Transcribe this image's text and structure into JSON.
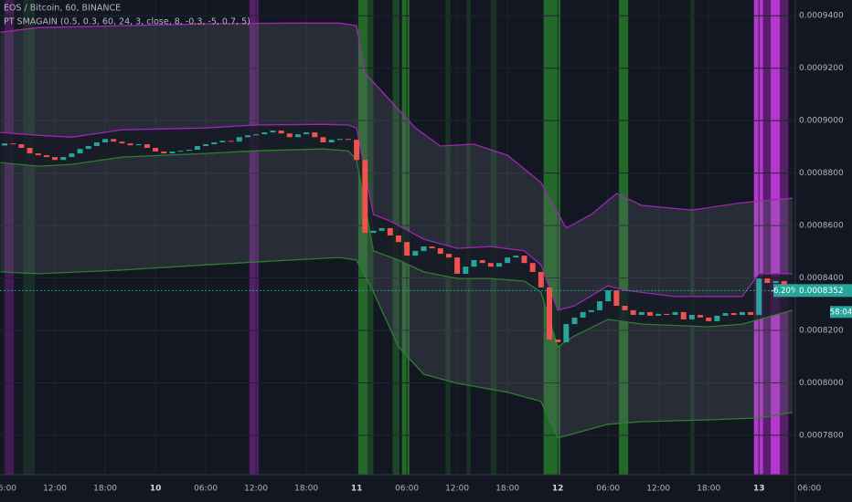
{
  "chart_data": {
    "type": "candlestick",
    "title": "EOS / Bitcoin, 60, BINANCE",
    "subtitle": "PT SMAGAIN (0.5, 0.3, 60, 24, 3, close, 8, -0.3, -5, 0.7, 5)",
    "x": [
      6,
      7,
      8,
      9,
      10,
      11,
      12,
      13,
      14,
      15,
      16,
      17,
      18,
      19,
      20,
      21,
      22,
      23,
      24,
      25,
      26,
      27,
      28,
      29,
      30,
      31,
      32,
      33,
      34,
      35,
      36,
      37,
      38,
      39,
      40,
      41,
      42,
      43,
      44,
      45,
      46,
      47,
      48,
      49,
      50,
      51,
      52,
      53,
      54,
      55,
      56,
      57,
      58,
      59,
      60,
      61,
      62,
      63,
      64,
      65,
      66,
      67,
      68,
      69,
      70,
      71,
      72,
      73,
      74,
      75,
      76,
      77,
      78,
      79,
      80,
      81,
      82,
      83,
      84,
      85,
      86,
      87,
      88,
      89,
      90,
      91,
      92,
      93,
      94,
      95,
      96,
      97,
      98,
      99,
      100
    ],
    "open": [
      0.0008905,
      0.0008913,
      0.000891,
      0.0008896,
      0.0008875,
      0.0008868,
      0.0008861,
      0.000885,
      0.0008861,
      0.0008875,
      0.0008892,
      0.0008903,
      0.0008917,
      0.000893,
      0.000892,
      0.0008913,
      0.0008906,
      0.000891,
      0.0008896,
      0.0008882,
      0.0008875,
      0.0008882,
      0.0008885,
      0.0008889,
      0.0008903,
      0.000891,
      0.0008917,
      0.0008923,
      0.000892,
      0.0008937,
      0.0008944,
      0.0008948,
      0.0008955,
      0.0008962,
      0.0008951,
      0.0008937,
      0.0008948,
      0.0008955,
      0.0008937,
      0.0008917,
      0.0008927,
      0.000893,
      0.0008927,
      0.000885,
      0.0008572,
      0.000858,
      0.000859,
      0.0008562,
      0.0008537,
      0.0008485,
      0.0008503,
      0.000852,
      0.0008513,
      0.0008492,
      0.0008478,
      0.0008416,
      0.0008443,
      0.0008468,
      0.0008457,
      0.0008443,
      0.0008457,
      0.0008478,
      0.0008485,
      0.0008457,
      0.0008423,
      0.0008364,
      0.0008165,
      0.0008155,
      0.0008224,
      0.0008249,
      0.000827,
      0.0008277,
      0.0008311,
      0.0008353,
      0.0008294,
      0.0008277,
      0.0008259,
      0.000827,
      0.0008256,
      0.0008263,
      0.0008259,
      0.000827,
      0.0008242,
      0.0008259,
      0.0008249,
      0.0008235,
      0.0008256,
      0.0008266,
      0.0008259,
      0.000827,
      0.0008259,
      0.0008398,
      0.0008381,
      0.0008388,
      0.0008367
    ],
    "close": [
      0.0008913,
      0.000891,
      0.0008896,
      0.0008875,
      0.0008868,
      0.0008861,
      0.000885,
      0.0008861,
      0.0008875,
      0.0008892,
      0.0008903,
      0.0008917,
      0.000893,
      0.000892,
      0.0008913,
      0.0008906,
      0.000891,
      0.0008896,
      0.0008882,
      0.0008875,
      0.0008882,
      0.0008885,
      0.0008889,
      0.0008903,
      0.000891,
      0.0008917,
      0.0008923,
      0.000892,
      0.0008937,
      0.0008944,
      0.0008948,
      0.0008955,
      0.0008962,
      0.0008951,
      0.0008937,
      0.0008948,
      0.0008955,
      0.0008937,
      0.0008917,
      0.0008927,
      0.000893,
      0.0008927,
      0.000885,
      0.0008572,
      0.000858,
      0.000859,
      0.0008562,
      0.0008537,
      0.0008485,
      0.0008503,
      0.000852,
      0.0008513,
      0.0008492,
      0.0008478,
      0.0008416,
      0.0008443,
      0.0008468,
      0.0008457,
      0.0008443,
      0.0008457,
      0.0008478,
      0.0008485,
      0.0008457,
      0.0008423,
      0.0008364,
      0.0008165,
      0.0008155,
      0.0008224,
      0.0008249,
      0.000827,
      0.0008277,
      0.0008311,
      0.0008353,
      0.0008294,
      0.0008277,
      0.0008259,
      0.000827,
      0.0008256,
      0.0008263,
      0.0008259,
      0.000827,
      0.0008242,
      0.0008259,
      0.0008249,
      0.0008235,
      0.0008256,
      0.0008266,
      0.0008259,
      0.000827,
      0.0008259,
      0.0008398,
      0.0008381,
      0.0008388,
      0.0008367,
      0.0008352
    ],
    "up_color": "#26a69a",
    "down_color": "#ef5350",
    "bands": [
      {
        "color": "#9c27b0",
        "x": [
          5.5,
          10,
          20,
          30,
          40,
          46,
          48,
          49,
          52,
          55,
          58,
          62,
          66,
          70,
          73,
          76,
          79,
          82,
          88,
          94,
          100
        ],
        "values": [
          0.0009337,
          0.0009355,
          0.0009362,
          0.0009369,
          0.0009372,
          0.0009372,
          0.0009362,
          0.0009181,
          0.0009077,
          0.0008972,
          0.0008903,
          0.000891,
          0.0008868,
          0.0008764,
          0.000859,
          0.0008642,
          0.0008722,
          0.0008677,
          0.0008659,
          0.0008687,
          0.0008704
        ]
      },
      {
        "color": "#9c27b0",
        "x": [
          5.5,
          10,
          14,
          20,
          30,
          36,
          44,
          47,
          48,
          50,
          52,
          56,
          60,
          64,
          68,
          70,
          72,
          74,
          78,
          80,
          86,
          94,
          96,
          100
        ],
        "values": [
          0.0008955,
          0.0008944,
          0.0008937,
          0.0008965,
          0.0008972,
          0.0008983,
          0.0008986,
          0.0008983,
          0.0008972,
          0.0008642,
          0.0008617,
          0.0008548,
          0.0008513,
          0.000852,
          0.0008503,
          0.000845,
          0.0008277,
          0.0008294,
          0.000837,
          0.0008353,
          0.0008329,
          0.0008329,
          0.0008416,
          0.0008416
        ]
      },
      {
        "color": "#2e7d32",
        "x": [
          5.5,
          10,
          14,
          20,
          30,
          36,
          44,
          47,
          48,
          50,
          53,
          56,
          60,
          64,
          68,
          70,
          72,
          74,
          78,
          82,
          90,
          94,
          100
        ],
        "values": [
          0.000884,
          0.0008826,
          0.0008833,
          0.0008861,
          0.0008875,
          0.0008885,
          0.0008892,
          0.0008885,
          0.000885,
          0.0008503,
          0.0008468,
          0.0008423,
          0.0008398,
          0.0008398,
          0.0008388,
          0.0008346,
          0.0008137,
          0.0008179,
          0.0008242,
          0.0008224,
          0.0008214,
          0.0008224,
          0.0008277
        ]
      },
      {
        "color": "#2e7d32",
        "x": [
          5.5,
          10,
          20,
          30,
          40,
          46,
          48,
          50,
          53,
          56,
          60,
          66,
          70,
          72,
          74,
          78,
          82,
          90,
          96,
          100
        ],
        "values": [
          0.0008423,
          0.0008416,
          0.000843,
          0.000845,
          0.0008468,
          0.0008478,
          0.0008468,
          0.0008346,
          0.0008137,
          0.0008033,
          0.0007998,
          0.0007964,
          0.0007929,
          0.000779,
          0.0007807,
          0.0007842,
          0.0007852,
          0.0007859,
          0.0007866,
          0.0007887
        ]
      }
    ],
    "highlights": [
      {
        "start": 6.0,
        "end": 7.1,
        "color": "rgba(156,39,176,0.35)"
      },
      {
        "start": 8.2,
        "end": 9.6,
        "color": "rgba(76,175,80,0.15)"
      },
      {
        "start": 35.2,
        "end": 36.3,
        "color": "rgba(156,39,176,0.5)"
      },
      {
        "start": 48.2,
        "end": 49.3,
        "color": "rgba(46,160,46,0.6)"
      },
      {
        "start": 49.3,
        "end": 50.0,
        "color": "rgba(46,160,46,0.3)"
      },
      {
        "start": 52.3,
        "end": 53.1,
        "color": "rgba(46,160,46,0.35)"
      },
      {
        "start": 53.4,
        "end": 54.3,
        "color": "rgba(46,160,46,0.6)"
      },
      {
        "start": 58.6,
        "end": 59.2,
        "color": "rgba(46,160,46,0.2)"
      },
      {
        "start": 61.1,
        "end": 61.6,
        "color": "rgba(46,160,46,0.2)"
      },
      {
        "start": 64.0,
        "end": 64.7,
        "color": "rgba(46,160,46,0.2)"
      },
      {
        "start": 70.3,
        "end": 72.3,
        "color": "rgba(46,160,46,0.6)"
      },
      {
        "start": 79.3,
        "end": 80.4,
        "color": "rgba(46,160,46,0.6)"
      },
      {
        "start": 87.8,
        "end": 88.3,
        "color": "rgba(46,160,46,0.2)"
      },
      {
        "start": 95.4,
        "end": 96.5,
        "color": "rgba(224,64,251,0.8)"
      },
      {
        "start": 96.5,
        "end": 97.4,
        "color": "rgba(156,39,176,0.5)"
      },
      {
        "start": 97.4,
        "end": 98.5,
        "color": "rgba(224,64,251,0.8)"
      },
      {
        "start": 98.5,
        "end": 99.5,
        "color": "rgba(156,39,176,0.5)"
      }
    ],
    "last_price": 0.0008352,
    "change_label": "-6.20%",
    "countdown": "58:04",
    "xlim": [
      5.45,
      107.1
    ],
    "ylim": [
      0.000765,
      0.000946
    ],
    "xticks": [
      {
        "value": 6,
        "label": "06:00"
      },
      {
        "value": 12,
        "label": "12:00"
      },
      {
        "value": 18,
        "label": "18:00"
      },
      {
        "value": 24,
        "label": "10"
      },
      {
        "value": 30,
        "label": "06:00"
      },
      {
        "value": 36,
        "label": "12:00"
      },
      {
        "value": 42,
        "label": "18:00"
      },
      {
        "value": 48,
        "label": "11"
      },
      {
        "value": 54,
        "label": "06:00"
      },
      {
        "value": 60,
        "label": "12:00"
      },
      {
        "value": 66,
        "label": "18:00"
      },
      {
        "value": 72,
        "label": "12"
      },
      {
        "value": 78,
        "label": "06:00"
      },
      {
        "value": 84,
        "label": "12:00"
      },
      {
        "value": 90,
        "label": "18:00"
      },
      {
        "value": 96,
        "label": "13"
      },
      {
        "value": 102,
        "label": "06:00"
      }
    ],
    "yticks": [
      {
        "value": 0.00094,
        "label": "0.0009400"
      },
      {
        "value": 0.00092,
        "label": "0.0009200"
      },
      {
        "value": 0.0009,
        "label": "0.0009000"
      },
      {
        "value": 0.00088,
        "label": "0.0008800"
      },
      {
        "value": 0.00086,
        "label": "0.0008600"
      },
      {
        "value": 0.00084,
        "label": "0.0008400"
      },
      {
        "value": 0.00082,
        "label": "0.0008200"
      },
      {
        "value": 0.0008,
        "label": "0.0008000"
      },
      {
        "value": 0.00078,
        "label": "0.0007800"
      }
    ],
    "grid": true
  }
}
